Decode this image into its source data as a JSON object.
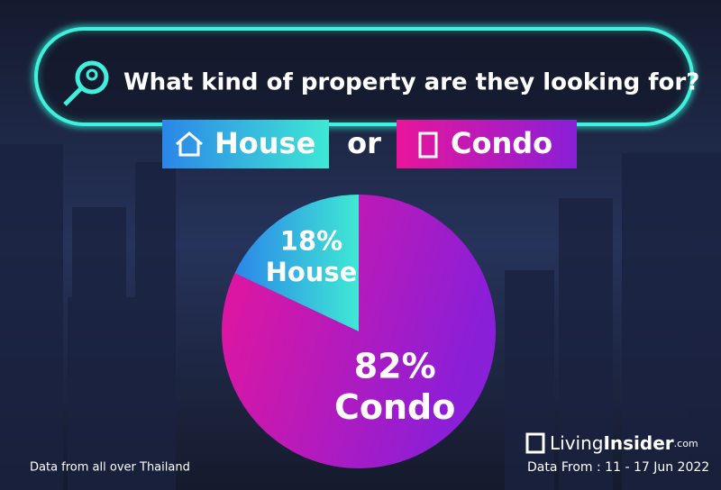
{
  "header": {
    "question": "What kind of property are they looking for?",
    "left": "House",
    "middle": "or",
    "right": "Condo"
  },
  "chart_data": {
    "type": "pie",
    "categories": [
      "House",
      "Condo"
    ],
    "values": [
      18,
      82
    ],
    "value_labels": [
      "18%",
      "82%"
    ],
    "colors": [
      [
        "#2b86e8",
        "#3fe8d4"
      ],
      [
        "#e8159a",
        "#8a1fd8"
      ]
    ]
  },
  "footer": {
    "note": "Data from all over Thailand",
    "brand_a": "Living",
    "brand_b": "Insider",
    "brand_c": ".com",
    "dates": "Data From : 11 - 17 Jun 2022"
  }
}
